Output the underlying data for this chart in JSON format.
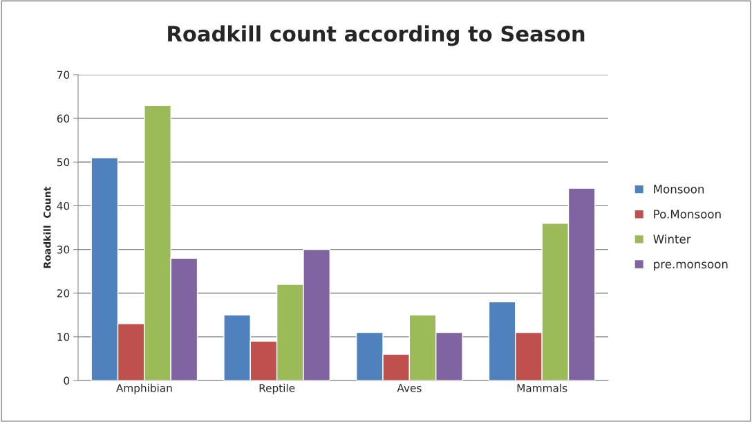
{
  "chart_data": {
    "type": "bar",
    "title": "Roadkill count according to Season",
    "ylabel": "Roadkill  Count",
    "categories": [
      "Amphibian",
      "Reptile",
      "Aves",
      "Mammals"
    ],
    "series": [
      {
        "name": "Monsoon",
        "color": "#4f81bd",
        "values": [
          51,
          15,
          11,
          18
        ]
      },
      {
        "name": "Po.Monsoon",
        "color": "#c0504d",
        "values": [
          13,
          9,
          6,
          11
        ]
      },
      {
        "name": "Winter",
        "color": "#9bbb59",
        "values": [
          63,
          22,
          15,
          36
        ]
      },
      {
        "name": "pre.monsoon",
        "color": "#8064a2",
        "values": [
          28,
          30,
          11,
          44
        ]
      }
    ],
    "ylim": [
      0,
      70
    ],
    "yticks": [
      0,
      10,
      20,
      30,
      40,
      50,
      60,
      70
    ],
    "grid": "y",
    "legend": "right"
  }
}
